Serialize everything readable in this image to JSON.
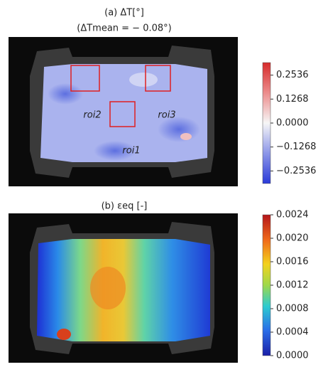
{
  "chart_data": [
    {
      "type": "contour",
      "title": "(a) ΔT[°]",
      "subtitle": "(ΔTmean = − 0.08°)",
      "annotations": [
        "roi2",
        "roi3",
        "roi1"
      ],
      "clim": [
        -0.32,
        0.32
      ],
      "cticks": [
        {
          "value": 0.2536,
          "label": "0.2536"
        },
        {
          "value": 0.1268,
          "label": "0.1268"
        },
        {
          "value": 0,
          "label": "0.0000"
        },
        {
          "value": -0.1268,
          "label": "−0.1268"
        },
        {
          "value": -0.2536,
          "label": "−0.2536"
        }
      ]
    },
    {
      "type": "contour",
      "title": "(b) εeq [-]",
      "clim": [
        0,
        0.0024
      ],
      "cticks": [
        0.0024,
        {
          "value": 0.002,
          "label": "0.0020"
        },
        0.0016,
        0.0012,
        0.0008,
        0.0004,
        {
          "value": 0,
          "label": "0.0000"
        }
      ]
    }
  ]
}
